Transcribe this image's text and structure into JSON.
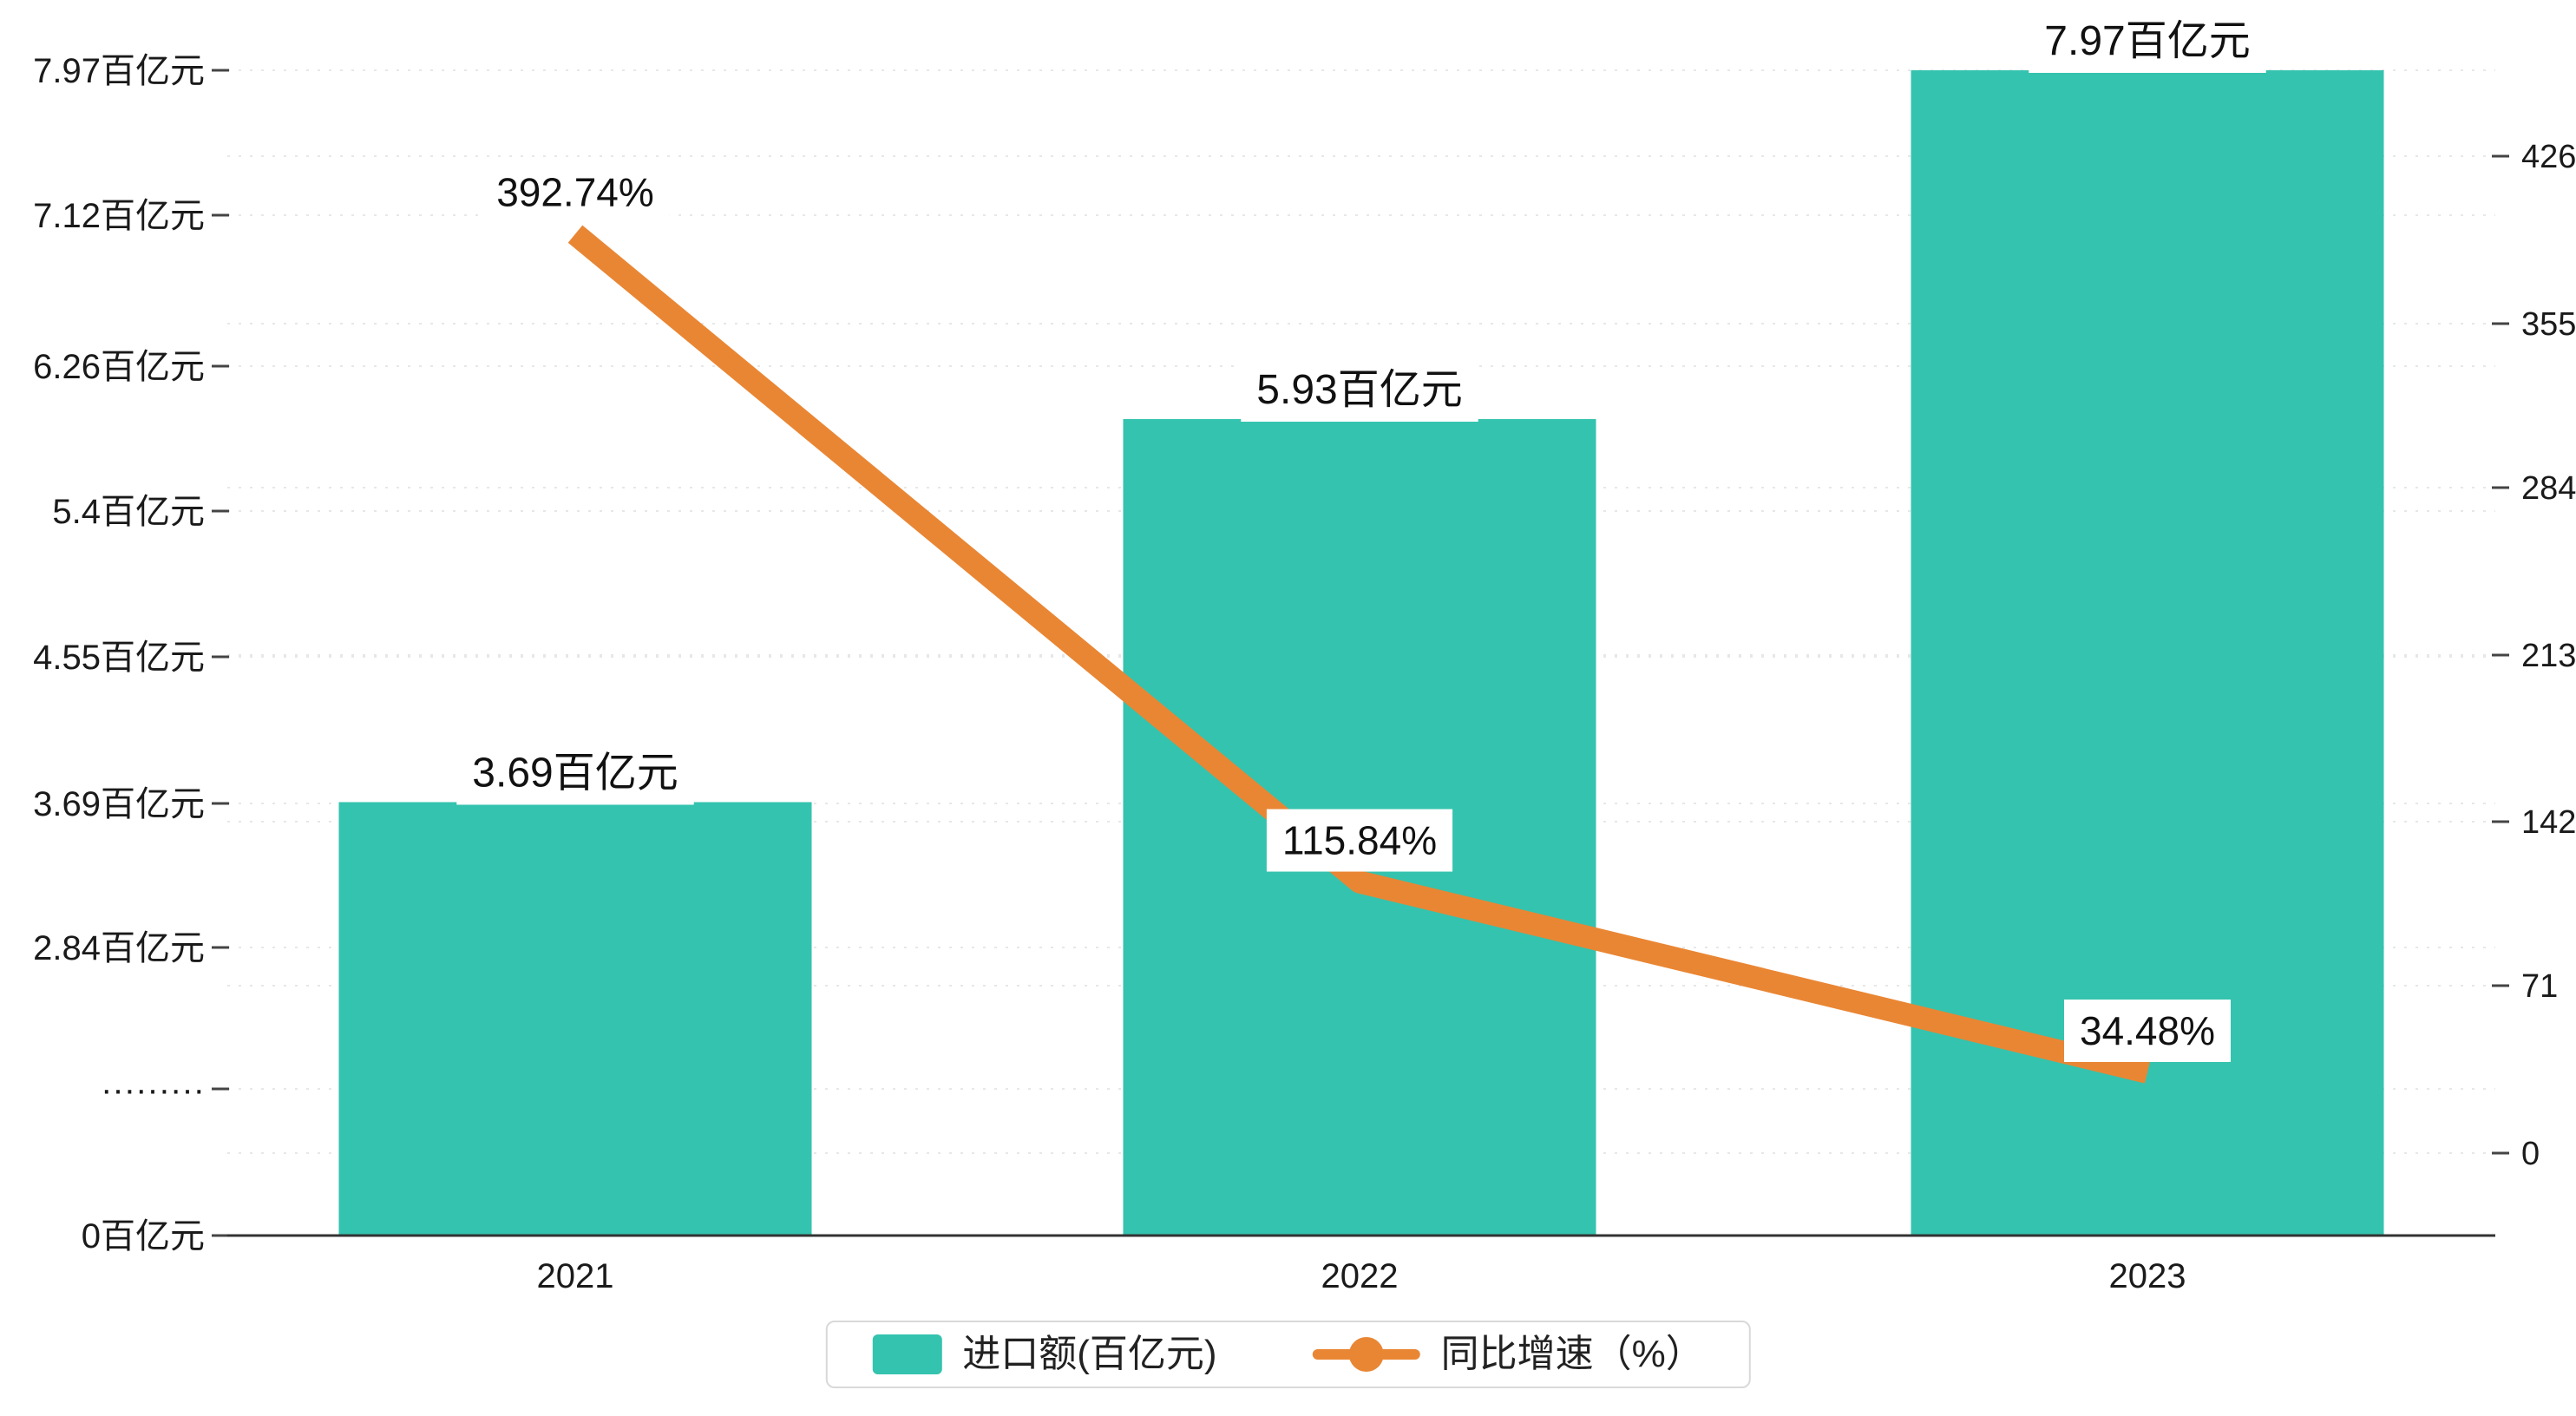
{
  "chart_data": {
    "type": "bar+line",
    "categories": [
      "2021",
      "2022",
      "2023"
    ],
    "series": [
      {
        "name": "进口额(百亿元)",
        "type": "bar",
        "color": "#34C3AE",
        "axis": "left",
        "values": [
          3.69,
          5.93,
          7.97
        ],
        "data_labels": [
          "3.69百亿元",
          "5.93百亿元",
          "7.97百亿元"
        ]
      },
      {
        "name": "同比增速（%）",
        "type": "line",
        "color": "#E98634",
        "axis": "right",
        "values": [
          392.74,
          115.84,
          34.48
        ],
        "data_labels": [
          "392.74%",
          "115.84%",
          "34.48%"
        ]
      }
    ],
    "left_axis": {
      "unit": "百亿元",
      "tick_labels": [
        "7.97百亿元",
        "7.12百亿元",
        "6.26百亿元",
        "5.4百亿元",
        "4.55百亿元",
        "3.69百亿元",
        "2.84百亿元",
        "·········",
        "0百亿元"
      ],
      "tick_values": [
        7.97,
        7.12,
        6.26,
        5.4,
        4.55,
        3.69,
        2.84,
        null,
        0
      ]
    },
    "right_axis": {
      "tick_labels": [
        "426",
        "355",
        "284",
        "213",
        "142",
        "71",
        "0"
      ],
      "tick_values": [
        426,
        355,
        284,
        213,
        142,
        71,
        0
      ],
      "range": [
        0,
        426
      ]
    },
    "grid": true,
    "legend_position": "bottom"
  }
}
